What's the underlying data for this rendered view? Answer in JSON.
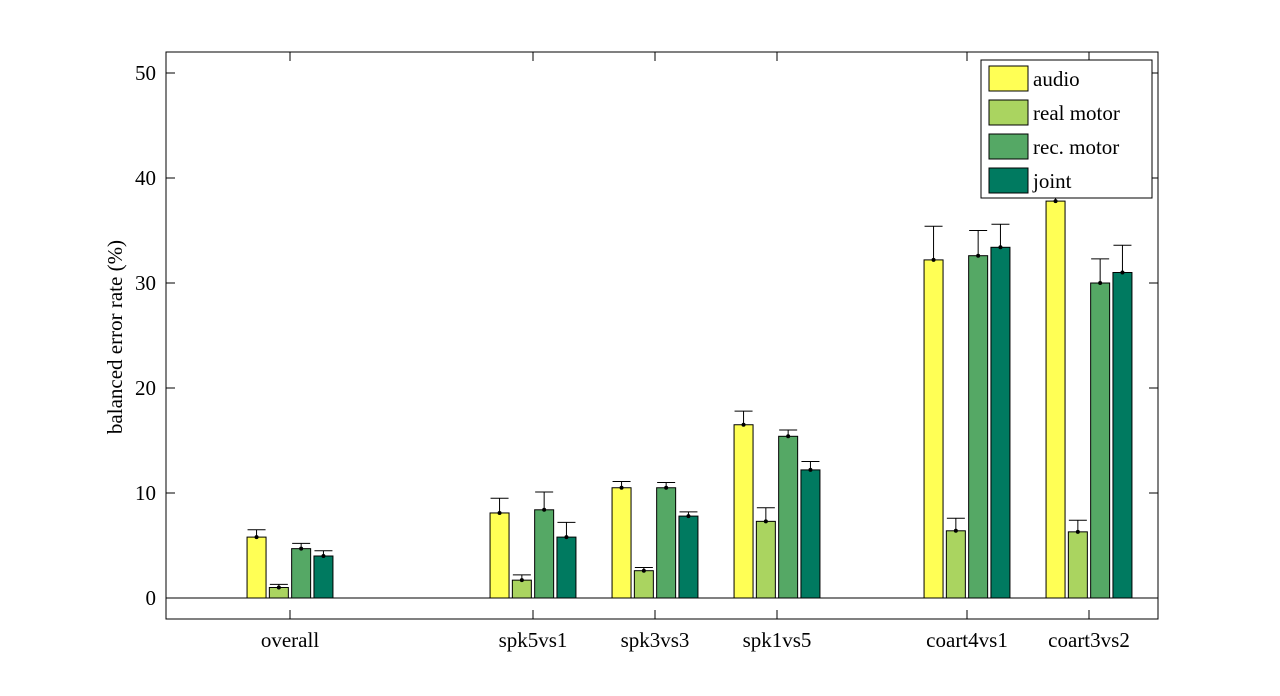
{
  "chart_data": {
    "type": "bar",
    "ylabel": "balanced error rate (%)",
    "ylim": [
      -2,
      52
    ],
    "yticks": [
      0,
      10,
      20,
      30,
      40,
      50
    ],
    "grid": false,
    "legend_position": "top-right",
    "category_groups": [
      [
        "overall"
      ],
      [
        "spk5vs1",
        "spk3vs3",
        "spk1vs5"
      ],
      [
        "coart4vs1",
        "coart3vs2"
      ]
    ],
    "categories": [
      "overall",
      "spk5vs1",
      "spk3vs3",
      "spk1vs5",
      "coart4vs1",
      "coart3vs2"
    ],
    "series": [
      {
        "name": "audio",
        "color": "#ffff55",
        "values": [
          5.8,
          8.1,
          10.5,
          16.5,
          32.2,
          37.8
        ],
        "errors": [
          0.7,
          1.4,
          0.6,
          1.3,
          3.2,
          1.5
        ]
      },
      {
        "name": "real motor",
        "color": "#aad460",
        "values": [
          1.0,
          1.7,
          2.6,
          7.3,
          6.4,
          6.3
        ],
        "errors": [
          0.3,
          0.5,
          0.3,
          1.3,
          1.2,
          1.1
        ]
      },
      {
        "name": "rec. motor",
        "color": "#55a865",
        "values": [
          4.7,
          8.4,
          10.5,
          15.4,
          32.6,
          30.0
        ],
        "errors": [
          0.5,
          1.7,
          0.5,
          0.6,
          2.4,
          2.3
        ]
      },
      {
        "name": "joint",
        "color": "#007a60",
        "values": [
          4.0,
          5.8,
          7.8,
          12.2,
          33.4,
          31.0
        ],
        "errors": [
          0.5,
          1.4,
          0.4,
          0.8,
          2.2,
          2.6
        ]
      }
    ]
  }
}
